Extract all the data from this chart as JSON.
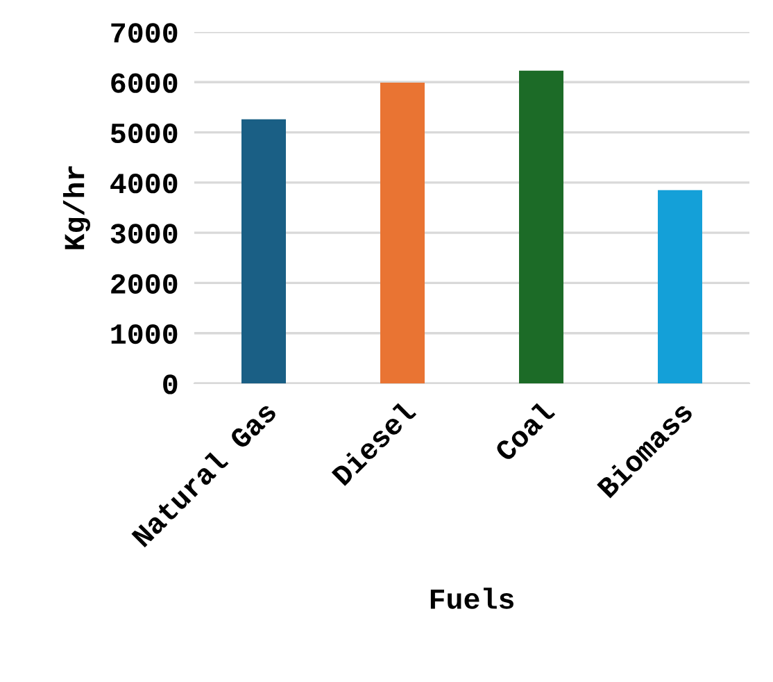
{
  "chart_data": {
    "type": "bar",
    "xlabel": "Fuels",
    "ylabel": "Kg/hr",
    "categories": [
      "Natural Gas",
      "Diesel",
      "Coal",
      "Biomass"
    ],
    "values": [
      5260,
      5990,
      6230,
      3850
    ],
    "colors": [
      "#1a5f85",
      "#e97433",
      "#1c6b27",
      "#14a0d8"
    ],
    "ylim": [
      0,
      7000
    ],
    "yticks": [
      0,
      1000,
      2000,
      3000,
      4000,
      5000,
      6000,
      7000
    ],
    "grid": "y",
    "legend": false
  }
}
